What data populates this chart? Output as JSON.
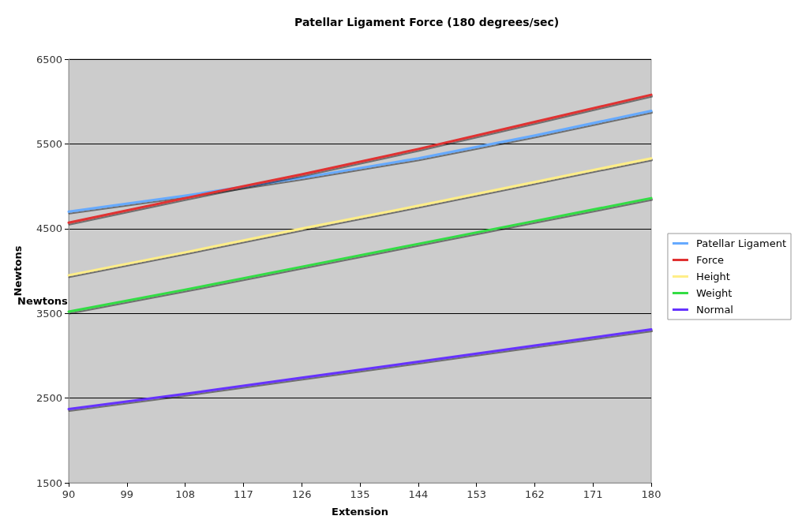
{
  "chart_data": {
    "type": "line",
    "title": "Patellar Ligament Force (180 degrees/sec)",
    "xlabel": "Extension",
    "ylabel": "Newtons",
    "annotations": [
      "Newtons"
    ],
    "x": [
      90,
      108,
      126,
      144,
      162,
      180
    ],
    "series": [
      {
        "name": "Patellar Ligament",
        "color": "#66aaff",
        "values": [
          4700,
          4890,
          5100,
          5330,
          5600,
          5890
        ]
      },
      {
        "name": "Force",
        "color": "#e03030",
        "values": [
          4570,
          4860,
          5140,
          5440,
          5760,
          6080
        ]
      },
      {
        "name": "Height",
        "color": "#ffee88",
        "values": [
          3950,
          4220,
          4500,
          4770,
          5050,
          5330
        ]
      },
      {
        "name": "Weight",
        "color": "#33dd44",
        "values": [
          3520,
          3780,
          4050,
          4320,
          4590,
          4860
        ]
      },
      {
        "name": "Normal",
        "color": "#6633ff",
        "values": [
          2370,
          2550,
          2740,
          2930,
          3120,
          3310
        ]
      }
    ],
    "xlim": [
      90,
      180
    ],
    "xticks": [
      90,
      99,
      108,
      117,
      126,
      135,
      144,
      153,
      162,
      171,
      180
    ],
    "ylim": [
      1500,
      6500
    ],
    "yticks": [
      1500,
      2500,
      3500,
      4500,
      5500,
      6500
    ],
    "grid": "y",
    "legend": "right",
    "marker": "none",
    "line_style": "solid"
  }
}
